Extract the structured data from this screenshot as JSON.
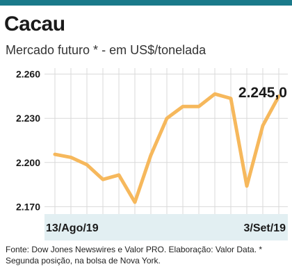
{
  "title": "Cacau",
  "subtitle": "Mercado futuro * - em US$/tonelada",
  "source_note": "Fonte: Dow Jones Newswires e Valor PRO. Elaboração: Valor Data. * Segunda posição, na bolsa de Nova York.",
  "colors": {
    "line": "#f6b85c",
    "background": "#ffffff",
    "bottom_band": "#e2eff2",
    "top_bar": "#1a7a8a",
    "grid": "#d9d9d9"
  },
  "chart_data": {
    "type": "line",
    "x_labels": [
      "13/Ago/19",
      "3/Set/19"
    ],
    "yticks": [
      "2.260",
      "2.230",
      "2.200",
      "2.170"
    ],
    "ytick_values": [
      2260,
      2230,
      2200,
      2170
    ],
    "ylim": [
      2165,
      2265
    ],
    "values": [
      2205.5,
      2203.5,
      2198.5,
      2188.5,
      2191.5,
      2173,
      2205,
      2230,
      2238,
      2238,
      2246.5,
      2243.5,
      2184,
      2225,
      2245
    ],
    "last_label": "2.245,0",
    "grid": true
  }
}
